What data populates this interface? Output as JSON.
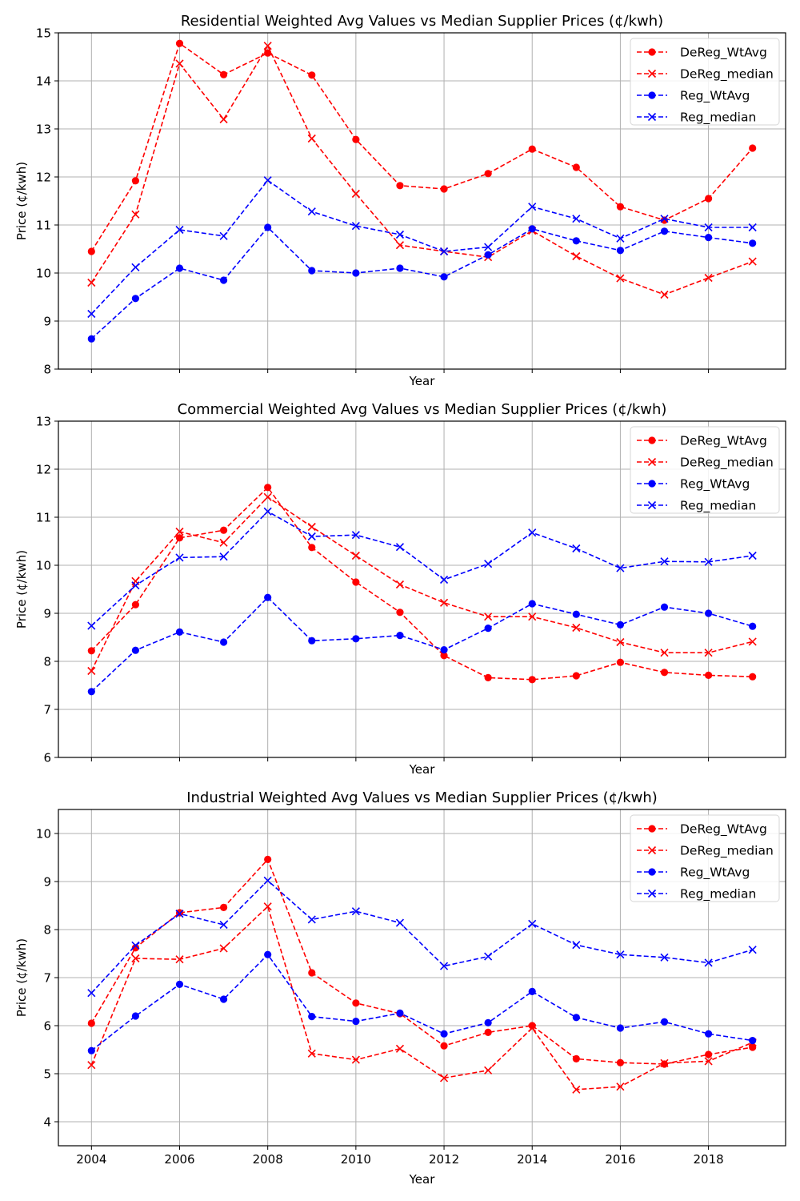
{
  "chart_data": [
    {
      "type": "line",
      "title": "Residential Weighted Avg Values vs Median Supplier Prices (¢/kwh)",
      "xlabel": "Year",
      "ylabel": "Price (¢/kwh)",
      "x": [
        2004,
        2005,
        2006,
        2007,
        2008,
        2009,
        2010,
        2011,
        2012,
        2013,
        2014,
        2015,
        2016,
        2017,
        2018,
        2019
      ],
      "xlim": [
        2003.25,
        2019.75
      ],
      "ylim": [
        8,
        15
      ],
      "xticks": [
        2004,
        2006,
        2008,
        2010,
        2012,
        2014,
        2016,
        2018
      ],
      "yticks": [
        8,
        9,
        10,
        11,
        12,
        13,
        14,
        15
      ],
      "show_xtick_labels": false,
      "grid": true,
      "legend_position": "top-right",
      "series": [
        {
          "name": "DeReg_WtAvg",
          "color": "#ff0000",
          "marker": "circle",
          "values": [
            10.45,
            11.92,
            14.78,
            14.13,
            14.58,
            14.12,
            12.78,
            11.82,
            11.75,
            12.07,
            12.58,
            12.2,
            11.38,
            11.1,
            11.55,
            12.6
          ]
        },
        {
          "name": "DeReg_median",
          "color": "#ff0000",
          "marker": "x",
          "values": [
            9.8,
            11.22,
            14.36,
            13.2,
            14.73,
            12.8,
            11.65,
            10.58,
            10.45,
            10.33,
            10.88,
            10.35,
            9.89,
            9.55,
            9.9,
            10.24
          ]
        },
        {
          "name": "Reg_WtAvg",
          "color": "#0000ff",
          "marker": "circle",
          "values": [
            8.63,
            9.47,
            10.1,
            9.85,
            10.95,
            10.05,
            10.0,
            10.1,
            9.92,
            10.38,
            10.92,
            10.67,
            10.47,
            10.87,
            10.74,
            10.62
          ]
        },
        {
          "name": "Reg_median",
          "color": "#0000ff",
          "marker": "x",
          "values": [
            9.15,
            10.12,
            10.9,
            10.77,
            11.93,
            11.28,
            10.98,
            10.8,
            10.45,
            10.54,
            11.38,
            11.13,
            10.72,
            11.13,
            10.95,
            10.95
          ]
        }
      ]
    },
    {
      "type": "line",
      "title": "Commercial Weighted Avg Values vs Median Supplier Prices (¢/kwh)",
      "xlabel": "Year",
      "ylabel": "Price (¢/kwh)",
      "x": [
        2004,
        2005,
        2006,
        2007,
        2008,
        2009,
        2010,
        2011,
        2012,
        2013,
        2014,
        2015,
        2016,
        2017,
        2018,
        2019
      ],
      "xlim": [
        2003.25,
        2019.75
      ],
      "ylim": [
        6,
        13
      ],
      "xticks": [
        2004,
        2006,
        2008,
        2010,
        2012,
        2014,
        2016,
        2018
      ],
      "yticks": [
        6,
        7,
        8,
        9,
        10,
        11,
        12,
        13
      ],
      "show_xtick_labels": false,
      "grid": true,
      "legend_position": "top-right",
      "series": [
        {
          "name": "DeReg_WtAvg",
          "color": "#ff0000",
          "marker": "circle",
          "values": [
            8.22,
            9.18,
            10.57,
            10.73,
            11.62,
            10.37,
            9.65,
            9.02,
            8.12,
            7.66,
            7.62,
            7.7,
            7.98,
            7.77,
            7.71,
            7.68
          ]
        },
        {
          "name": "DeReg_median",
          "color": "#ff0000",
          "marker": "x",
          "values": [
            7.8,
            9.67,
            10.7,
            10.47,
            11.42,
            10.8,
            10.2,
            9.6,
            9.22,
            8.93,
            8.93,
            8.7,
            8.4,
            8.18,
            8.18,
            8.41
          ]
        },
        {
          "name": "Reg_WtAvg",
          "color": "#0000ff",
          "marker": "circle",
          "values": [
            7.37,
            8.23,
            8.61,
            8.4,
            9.33,
            8.43,
            8.47,
            8.54,
            8.24,
            8.69,
            9.2,
            8.98,
            8.76,
            9.13,
            9.0,
            8.73
          ]
        },
        {
          "name": "Reg_median",
          "color": "#0000ff",
          "marker": "x",
          "values": [
            8.74,
            9.58,
            10.16,
            10.18,
            11.12,
            10.6,
            10.63,
            10.38,
            9.7,
            10.03,
            10.68,
            10.35,
            9.94,
            10.08,
            10.07,
            10.2
          ]
        }
      ]
    },
    {
      "type": "line",
      "title": "Industrial Weighted Avg Values vs Median Supplier Prices (¢/kwh)",
      "xlabel": "Year",
      "ylabel": "Price (¢/kwh)",
      "x": [
        2004,
        2005,
        2006,
        2007,
        2008,
        2009,
        2010,
        2011,
        2012,
        2013,
        2014,
        2015,
        2016,
        2017,
        2018,
        2019
      ],
      "xlim": [
        2003.25,
        2019.75
      ],
      "ylim": [
        3.5,
        10.5
      ],
      "xticks": [
        2004,
        2006,
        2008,
        2010,
        2012,
        2014,
        2016,
        2018
      ],
      "yticks": [
        4,
        5,
        6,
        7,
        8,
        9,
        10
      ],
      "show_xtick_labels": true,
      "grid": true,
      "legend_position": "top-right",
      "series": [
        {
          "name": "DeReg_WtAvg",
          "color": "#ff0000",
          "marker": "circle",
          "values": [
            6.05,
            7.62,
            8.35,
            8.46,
            9.46,
            7.1,
            6.47,
            6.25,
            5.58,
            5.86,
            6.0,
            5.31,
            5.23,
            5.2,
            5.4,
            5.55
          ]
        },
        {
          "name": "DeReg_median",
          "color": "#ff0000",
          "marker": "x",
          "values": [
            5.18,
            7.4,
            7.38,
            7.61,
            8.48,
            5.42,
            5.29,
            5.52,
            4.91,
            5.07,
            5.95,
            4.67,
            4.73,
            5.22,
            5.26,
            5.65
          ]
        },
        {
          "name": "Reg_WtAvg",
          "color": "#0000ff",
          "marker": "circle",
          "values": [
            5.48,
            6.2,
            6.86,
            6.55,
            7.48,
            6.19,
            6.09,
            6.26,
            5.83,
            6.06,
            6.71,
            6.17,
            5.95,
            6.08,
            5.83,
            5.69
          ]
        },
        {
          "name": "Reg_median",
          "color": "#0000ff",
          "marker": "x",
          "values": [
            6.68,
            7.67,
            8.33,
            8.1,
            9.02,
            8.21,
            8.38,
            8.14,
            7.24,
            7.44,
            8.12,
            7.68,
            7.48,
            7.42,
            7.31,
            7.58
          ]
        }
      ]
    }
  ]
}
